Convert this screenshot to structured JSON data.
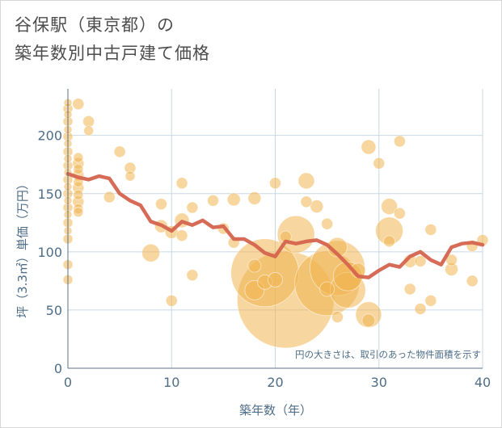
{
  "header": {
    "title_line1": "谷保駅（東京都）の",
    "title_line2": "築年数別中古戸建て価格"
  },
  "chart_data": {
    "type": "scatter",
    "xlabel": "築年数（年）",
    "ylabel": "坪（3.3㎡）単価（万円）",
    "xlim": [
      0,
      40
    ],
    "ylim": [
      0,
      240
    ],
    "xticks": [
      0,
      10,
      20,
      30,
      40
    ],
    "yticks": [
      0,
      50,
      100,
      150,
      200
    ],
    "grid": true,
    "annotation": "円の大きさは、取引のあった物件面積を示す",
    "colors": {
      "bubble": "#f0b450",
      "line": "#d4644e",
      "axis_text": "#4e6d87",
      "grid": "#c8d8e4"
    },
    "series": [
      {
        "kind": "bubble",
        "points": [
          {
            "x": 0,
            "y": 228,
            "s": 5
          },
          {
            "x": 0,
            "y": 223,
            "s": 6
          },
          {
            "x": 0,
            "y": 218,
            "s": 5
          },
          {
            "x": 0,
            "y": 212,
            "s": 6
          },
          {
            "x": 0,
            "y": 205,
            "s": 5
          },
          {
            "x": 0,
            "y": 199,
            "s": 6
          },
          {
            "x": 0,
            "y": 193,
            "s": 5
          },
          {
            "x": 0,
            "y": 186,
            "s": 6
          },
          {
            "x": 0,
            "y": 180,
            "s": 5
          },
          {
            "x": 0,
            "y": 174,
            "s": 6
          },
          {
            "x": 0,
            "y": 168,
            "s": 5
          },
          {
            "x": 0,
            "y": 162,
            "s": 6
          },
          {
            "x": 0,
            "y": 156,
            "s": 5
          },
          {
            "x": 0,
            "y": 150,
            "s": 6
          },
          {
            "x": 0,
            "y": 144,
            "s": 5
          },
          {
            "x": 0,
            "y": 138,
            "s": 6
          },
          {
            "x": 0,
            "y": 132,
            "s": 5
          },
          {
            "x": 0,
            "y": 125,
            "s": 6
          },
          {
            "x": 0,
            "y": 118,
            "s": 5
          },
          {
            "x": 0,
            "y": 111,
            "s": 6
          },
          {
            "x": 0,
            "y": 89,
            "s": 6
          },
          {
            "x": 0,
            "y": 76,
            "s": 6
          },
          {
            "x": 1,
            "y": 227,
            "s": 7
          },
          {
            "x": 1,
            "y": 181,
            "s": 6
          },
          {
            "x": 1,
            "y": 176,
            "s": 7
          },
          {
            "x": 1,
            "y": 171,
            "s": 6
          },
          {
            "x": 1,
            "y": 166,
            "s": 7
          },
          {
            "x": 1,
            "y": 160,
            "s": 6
          },
          {
            "x": 1,
            "y": 155,
            "s": 7
          },
          {
            "x": 1,
            "y": 149,
            "s": 6
          },
          {
            "x": 1,
            "y": 143,
            "s": 7
          },
          {
            "x": 1,
            "y": 137,
            "s": 6
          },
          {
            "x": 1,
            "y": 134,
            "s": 6
          },
          {
            "x": 2,
            "y": 212,
            "s": 7
          },
          {
            "x": 2,
            "y": 204,
            "s": 6
          },
          {
            "x": 4,
            "y": 147,
            "s": 7
          },
          {
            "x": 5,
            "y": 186,
            "s": 7
          },
          {
            "x": 6,
            "y": 172,
            "s": 7
          },
          {
            "x": 6,
            "y": 165,
            "s": 6
          },
          {
            "x": 8,
            "y": 99,
            "s": 11
          },
          {
            "x": 9,
            "y": 141,
            "s": 7
          },
          {
            "x": 9,
            "y": 122,
            "s": 8
          },
          {
            "x": 10,
            "y": 117,
            "s": 8
          },
          {
            "x": 10,
            "y": 58,
            "s": 7
          },
          {
            "x": 11,
            "y": 159,
            "s": 7
          },
          {
            "x": 11,
            "y": 127,
            "s": 9
          },
          {
            "x": 11,
            "y": 114,
            "s": 7
          },
          {
            "x": 12,
            "y": 138,
            "s": 7
          },
          {
            "x": 12,
            "y": 80,
            "s": 7
          },
          {
            "x": 14,
            "y": 144,
            "s": 7
          },
          {
            "x": 15,
            "y": 120,
            "s": 7
          },
          {
            "x": 16,
            "y": 145,
            "s": 8
          },
          {
            "x": 16,
            "y": 108,
            "s": 7
          },
          {
            "x": 18,
            "y": 146,
            "s": 8
          },
          {
            "x": 18,
            "y": 88,
            "s": 8
          },
          {
            "x": 18,
            "y": 67,
            "s": 12
          },
          {
            "x": 19,
            "y": 82,
            "s": 42
          },
          {
            "x": 19,
            "y": 74,
            "s": 9
          },
          {
            "x": 20,
            "y": 159,
            "s": 7
          },
          {
            "x": 20,
            "y": 76,
            "s": 9
          },
          {
            "x": 21,
            "y": 59,
            "s": 60
          },
          {
            "x": 21,
            "y": 113,
            "s": 7
          },
          {
            "x": 22,
            "y": 115,
            "s": 23
          },
          {
            "x": 23,
            "y": 161,
            "s": 10
          },
          {
            "x": 23,
            "y": 143,
            "s": 7
          },
          {
            "x": 24,
            "y": 139,
            "s": 8
          },
          {
            "x": 25,
            "y": 124,
            "s": 7
          },
          {
            "x": 25,
            "y": 73,
            "s": 40
          },
          {
            "x": 25,
            "y": 68,
            "s": 9
          },
          {
            "x": 26,
            "y": 86,
            "s": 34
          },
          {
            "x": 26,
            "y": 104,
            "s": 12
          },
          {
            "x": 26,
            "y": 44,
            "s": 7
          },
          {
            "x": 27,
            "y": 79,
            "s": 18
          },
          {
            "x": 27,
            "y": 67,
            "s": 22
          },
          {
            "x": 28,
            "y": 84,
            "s": 9
          },
          {
            "x": 29,
            "y": 190,
            "s": 9
          },
          {
            "x": 29,
            "y": 46,
            "s": 16
          },
          {
            "x": 29,
            "y": 41,
            "s": 8
          },
          {
            "x": 30,
            "y": 176,
            "s": 7
          },
          {
            "x": 31,
            "y": 139,
            "s": 10
          },
          {
            "x": 31,
            "y": 118,
            "s": 17
          },
          {
            "x": 31,
            "y": 109,
            "s": 7
          },
          {
            "x": 32,
            "y": 195,
            "s": 7
          },
          {
            "x": 32,
            "y": 133,
            "s": 7
          },
          {
            "x": 33,
            "y": 92,
            "s": 8
          },
          {
            "x": 33,
            "y": 68,
            "s": 7
          },
          {
            "x": 34,
            "y": 92,
            "s": 7
          },
          {
            "x": 34,
            "y": 51,
            "s": 7
          },
          {
            "x": 35,
            "y": 119,
            "s": 7
          },
          {
            "x": 35,
            "y": 58,
            "s": 7
          },
          {
            "x": 37,
            "y": 93,
            "s": 7
          },
          {
            "x": 37,
            "y": 85,
            "s": 8
          },
          {
            "x": 39,
            "y": 105,
            "s": 7
          },
          {
            "x": 39,
            "y": 75,
            "s": 7
          },
          {
            "x": 40,
            "y": 110,
            "s": 7
          }
        ]
      },
      {
        "kind": "line",
        "points": [
          {
            "x": 0,
            "y": 167
          },
          {
            "x": 1,
            "y": 164
          },
          {
            "x": 2,
            "y": 162
          },
          {
            "x": 3,
            "y": 165
          },
          {
            "x": 4,
            "y": 163
          },
          {
            "x": 5,
            "y": 150
          },
          {
            "x": 6,
            "y": 144
          },
          {
            "x": 7,
            "y": 140
          },
          {
            "x": 8,
            "y": 126
          },
          {
            "x": 9,
            "y": 123
          },
          {
            "x": 10,
            "y": 118
          },
          {
            "x": 11,
            "y": 126
          },
          {
            "x": 12,
            "y": 123
          },
          {
            "x": 13,
            "y": 127
          },
          {
            "x": 14,
            "y": 121
          },
          {
            "x": 15,
            "y": 122
          },
          {
            "x": 16,
            "y": 111
          },
          {
            "x": 17,
            "y": 111
          },
          {
            "x": 18,
            "y": 106
          },
          {
            "x": 19,
            "y": 99
          },
          {
            "x": 20,
            "y": 96
          },
          {
            "x": 21,
            "y": 109
          },
          {
            "x": 22,
            "y": 107
          },
          {
            "x": 23,
            "y": 109
          },
          {
            "x": 24,
            "y": 110
          },
          {
            "x": 25,
            "y": 106
          },
          {
            "x": 26,
            "y": 98
          },
          {
            "x": 27,
            "y": 89
          },
          {
            "x": 28,
            "y": 79
          },
          {
            "x": 29,
            "y": 78
          },
          {
            "x": 30,
            "y": 84
          },
          {
            "x": 31,
            "y": 89
          },
          {
            "x": 32,
            "y": 87
          },
          {
            "x": 33,
            "y": 96
          },
          {
            "x": 34,
            "y": 100
          },
          {
            "x": 35,
            "y": 93
          },
          {
            "x": 36,
            "y": 89
          },
          {
            "x": 37,
            "y": 104
          },
          {
            "x": 38,
            "y": 107
          },
          {
            "x": 39,
            "y": 108
          },
          {
            "x": 40,
            "y": 106
          }
        ]
      }
    ]
  }
}
